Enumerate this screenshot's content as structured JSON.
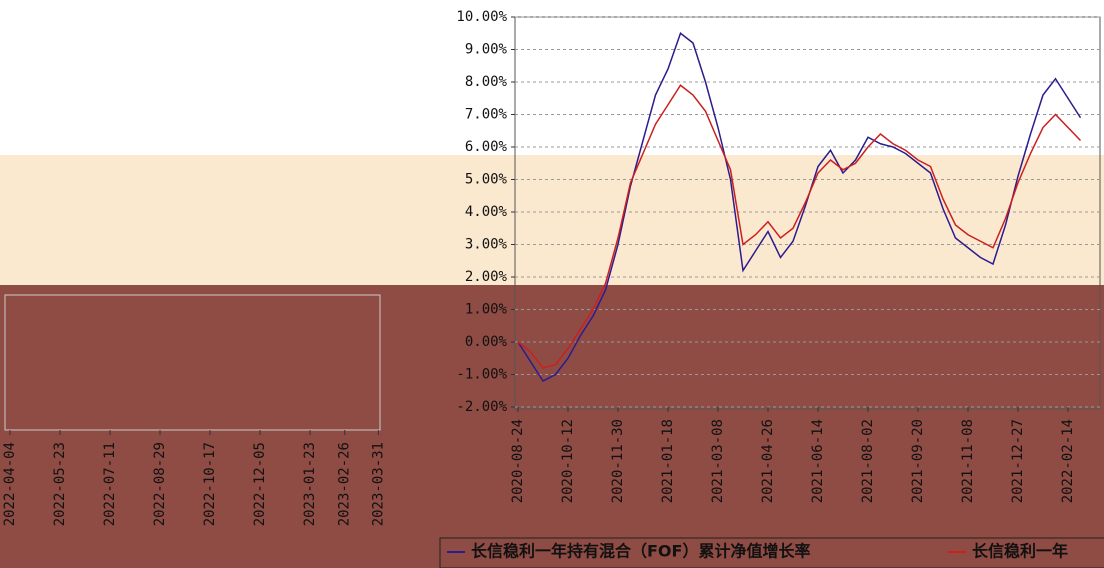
{
  "chart_data": [
    {
      "type": "line",
      "categories": [
        "2020-08-24",
        null,
        null,
        null,
        "2020-10-12",
        null,
        null,
        null,
        "2020-11-30",
        null,
        null,
        null,
        "2021-01-18",
        null,
        null,
        null,
        "2021-03-08",
        null,
        null,
        null,
        "2021-04-26",
        null,
        null,
        null,
        "2021-06-14",
        null,
        null,
        null,
        "2021-08-02",
        null,
        null,
        null,
        "2021-09-20",
        null,
        null,
        null,
        "2021-11-08",
        null,
        null,
        null,
        "2021-12-27",
        null,
        null,
        null,
        "2022-02-14",
        null
      ],
      "series": [
        {
          "name": "长信稳利一年持有混合（FOF）累计净值增长率",
          "color": "#2b1c8f",
          "values": [
            0,
            -0.6,
            -1.2,
            -1.0,
            -0.5,
            0.2,
            0.8,
            1.6,
            3.0,
            4.8,
            6.2,
            7.6,
            8.4,
            9.5,
            9.2,
            8.0,
            6.6,
            5.0,
            2.2,
            2.8,
            3.4,
            2.6,
            3.1,
            4.2,
            5.4,
            5.9,
            5.2,
            5.6,
            6.3,
            6.1,
            6.0,
            5.8,
            5.5,
            5.2,
            4.1,
            3.2,
            2.9,
            2.6,
            2.4,
            3.6,
            5.1,
            6.4,
            7.6,
            8.1,
            7.5,
            6.9
          ]
        },
        {
          "name": "长信稳利一年",
          "color": "#cc1f1f",
          "values": [
            0,
            -0.3,
            -0.8,
            -0.7,
            -0.2,
            0.4,
            1.0,
            1.8,
            3.2,
            4.9,
            5.8,
            6.7,
            7.3,
            7.9,
            7.6,
            7.1,
            6.2,
            5.3,
            3.0,
            3.3,
            3.7,
            3.2,
            3.5,
            4.3,
            5.2,
            5.6,
            5.3,
            5.5,
            6.0,
            6.4,
            6.1,
            5.9,
            5.6,
            5.4,
            4.4,
            3.6,
            3.3,
            3.1,
            2.9,
            3.8,
            4.9,
            5.8,
            6.6,
            7.0,
            6.6,
            6.2
          ]
        }
      ],
      "ylim": [
        -2,
        10
      ],
      "yticks": [
        {
          "value": -2,
          "label": "-2.00%"
        },
        {
          "value": -1,
          "label": "-1.00%"
        },
        {
          "value": 0,
          "label": "0.00%"
        },
        {
          "value": 1,
          "label": "1.00%"
        },
        {
          "value": 2,
          "label": "2.00%"
        },
        {
          "value": 3,
          "label": "3.00%"
        },
        {
          "value": 4,
          "label": "4.00%"
        },
        {
          "value": 5,
          "label": "5.00%"
        },
        {
          "value": 6,
          "label": "6.00%"
        },
        {
          "value": 7,
          "label": "7.00%"
        },
        {
          "value": 8,
          "label": "8.00%"
        },
        {
          "value": 9,
          "label": "9.00%"
        },
        {
          "value": 10,
          "label": "10.00%"
        }
      ],
      "grid": true
    },
    {
      "type": "line",
      "categories": [
        "2022-04-04",
        "2022-05-23",
        "2022-07-11",
        "2022-08-29",
        "2022-10-17",
        "2022-12-05",
        "2023-01-23",
        "2023-02-26",
        "2023-03-31"
      ]
    }
  ]
}
